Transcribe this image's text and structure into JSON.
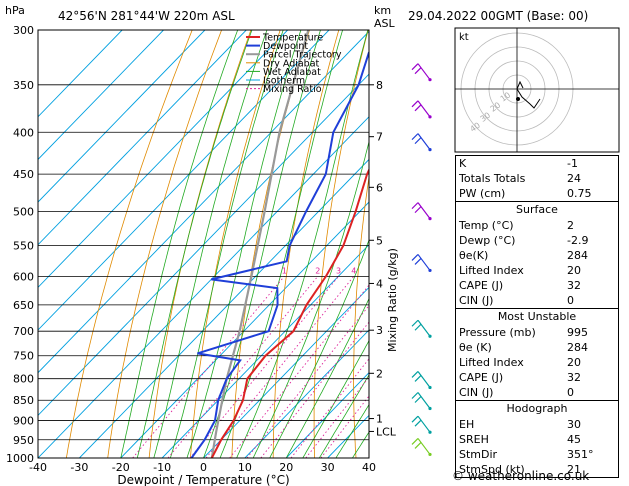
{
  "header": {
    "hpa": "hPa",
    "location": "42°56'N  281°44'W  220m  ASL",
    "km": "km",
    "asl": "ASL",
    "datetime": "29.04.2022  00GMT  (Base: 00)"
  },
  "legend": [
    "Temperature",
    "Dewpoint",
    "Parcel Trajectory",
    "Dry Adiabat",
    "Wet Adiabat",
    "Isotherm",
    "Mixing Ratio"
  ],
  "colors": {
    "temperature": "#dd2222",
    "dewpoint": "#1f3fd8",
    "parcel": "#999999",
    "dry_adiabat": "#e08a00",
    "wet_adiabat": "#22aa22",
    "isotherm": "#00a0e0",
    "mixing_ratio": "#dd2299",
    "wind": "#9900cc"
  },
  "chart_data": {
    "type": "line",
    "title": "29.04.2022  00GMT  (Base: 00)",
    "xlabel": "Dewpoint / Temperature (°C)",
    "ylabel": "hPa",
    "xlim": [
      -40,
      40
    ],
    "ylim": [
      1000,
      300
    ],
    "pressure_ticks": [
      300,
      350,
      400,
      450,
      500,
      550,
      600,
      650,
      700,
      750,
      800,
      850,
      900,
      950,
      1000
    ],
    "temperature_ticks": [
      -40,
      -30,
      -20,
      -10,
      0,
      10,
      20,
      30,
      40
    ],
    "km_ticks": [
      {
        "label": "8",
        "p": 350
      },
      {
        "label": "7",
        "p": 405
      },
      {
        "label": "6",
        "p": 467
      },
      {
        "label": "5",
        "p": 542
      },
      {
        "label": "4",
        "p": 612
      },
      {
        "label": "3",
        "p": 698
      },
      {
        "label": "2",
        "p": 788
      },
      {
        "label": "1",
        "p": 895
      },
      {
        "label": "LCL",
        "p": 928
      }
    ],
    "km_axis_label": "Mixing Ratio (g/kg)",
    "mixing_ratio_labels": [
      "1",
      "2",
      "3",
      "4",
      "6",
      "8",
      "10",
      "16",
      "20",
      "25"
    ],
    "series": [
      {
        "name": "Temperature",
        "points": [
          [
            1000,
            2
          ],
          [
            950,
            0
          ],
          [
            900,
            -1.5
          ],
          [
            850,
            -4
          ],
          [
            800,
            -8
          ],
          [
            750,
            -9
          ],
          [
            700,
            -8
          ],
          [
            650,
            -11
          ],
          [
            600,
            -13
          ],
          [
            550,
            -16
          ],
          [
            500,
            -21
          ],
          [
            450,
            -27
          ],
          [
            400,
            -32
          ],
          [
            350,
            -40
          ],
          [
            300,
            -47
          ]
        ]
      },
      {
        "name": "Dewpoint",
        "points": [
          [
            1000,
            -2.9
          ],
          [
            950,
            -4
          ],
          [
            900,
            -6
          ],
          [
            850,
            -10
          ],
          [
            800,
            -13
          ],
          [
            760,
            -14
          ],
          [
            745,
            -26
          ],
          [
            700,
            -14
          ],
          [
            650,
            -18
          ],
          [
            620,
            -22
          ],
          [
            605,
            -40
          ],
          [
            575,
            -26
          ],
          [
            550,
            -29
          ],
          [
            500,
            -33
          ],
          [
            450,
            -37
          ],
          [
            400,
            -45
          ],
          [
            350,
            -50
          ],
          [
            320,
            -55
          ],
          [
            300,
            -56
          ]
        ]
      },
      {
        "name": "Parcel Trajectory",
        "points": [
          [
            1000,
            2
          ],
          [
            930,
            -3
          ],
          [
            850,
            -9
          ],
          [
            800,
            -13
          ],
          [
            700,
            -21
          ],
          [
            600,
            -31
          ],
          [
            500,
            -43
          ],
          [
            400,
            -58
          ],
          [
            300,
            -75
          ]
        ]
      }
    ]
  },
  "hodograph": {
    "label": "kt",
    "rings": [
      "10",
      "20",
      "30",
      "40"
    ]
  },
  "indices": {
    "k": {
      "label": "K",
      "value": "-1"
    },
    "tt": {
      "label": "Totals Totals",
      "value": "24"
    },
    "pw": {
      "label": "PW (cm)",
      "value": "0.75"
    }
  },
  "surface": {
    "title": "Surface",
    "rows": [
      {
        "label": "Temp (°C)",
        "value": "2"
      },
      {
        "label": "Dewp (°C)",
        "value": "-2.9"
      },
      {
        "label": "θe(K)",
        "value": "284"
      },
      {
        "label": "Lifted Index",
        "value": "20"
      },
      {
        "label": "CAPE (J)",
        "value": "32"
      },
      {
        "label": "CIN (J)",
        "value": "0"
      }
    ]
  },
  "unstable": {
    "title": "Most Unstable",
    "rows": [
      {
        "label": "Pressure (mb)",
        "value": "995"
      },
      {
        "label": "θe (K)",
        "value": "284"
      },
      {
        "label": "Lifted Index",
        "value": "20"
      },
      {
        "label": "CAPE (J)",
        "value": "32"
      },
      {
        "label": "CIN (J)",
        "value": "0"
      }
    ]
  },
  "hodo_table": {
    "title": "Hodograph",
    "rows": [
      {
        "label": "EH",
        "value": "30"
      },
      {
        "label": "SREH",
        "value": "45"
      },
      {
        "label": "StmDir",
        "value": "351°"
      },
      {
        "label": "StmSpd (kt)",
        "value": "21"
      }
    ]
  },
  "copyright": "© weatheronline.co.uk"
}
